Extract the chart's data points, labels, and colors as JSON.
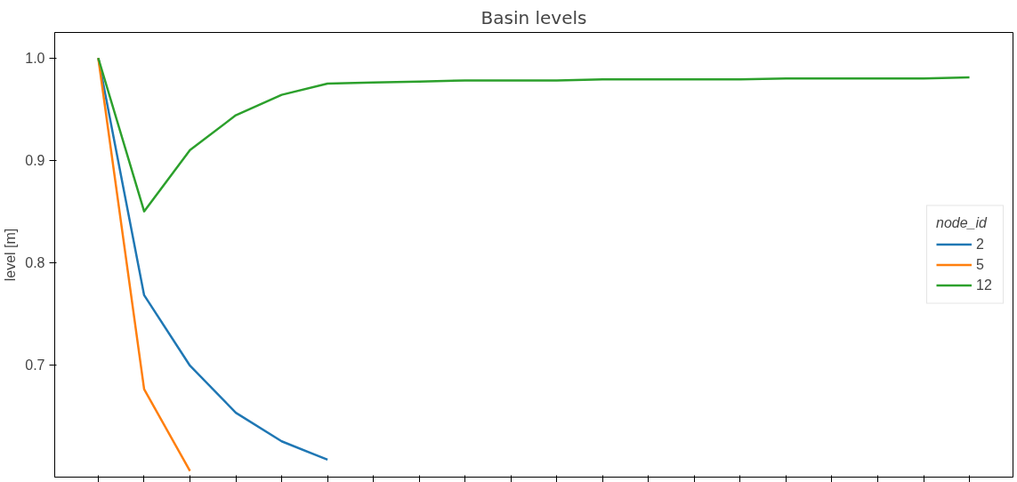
{
  "chart_data": {
    "type": "line",
    "title": "Basin levels",
    "ylabel": "level [m]",
    "legend_title": "node_id",
    "categories": [
      null,
      null,
      null,
      null,
      null,
      null,
      null,
      null,
      null,
      null,
      null,
      null,
      null,
      null,
      null,
      null,
      null,
      null,
      null,
      null
    ],
    "series": [
      {
        "name": "2",
        "color": "#1f77b4",
        "values": [
          1.0,
          0.768,
          0.699,
          0.653,
          0.625,
          0.607,
          null,
          null,
          null,
          null,
          null,
          null,
          null,
          null,
          null,
          null,
          null,
          null,
          null,
          null
        ]
      },
      {
        "name": "5",
        "color": "#ff7f0e",
        "values": [
          1.0,
          0.676,
          0.596,
          null,
          null,
          null,
          null,
          null,
          null,
          null,
          null,
          null,
          null,
          null,
          null,
          null,
          null,
          null,
          null,
          null
        ]
      },
      {
        "name": "12",
        "color": "#2ca02c",
        "values": [
          1.0,
          0.85,
          0.91,
          0.944,
          0.964,
          0.975,
          0.976,
          0.977,
          0.978,
          0.978,
          0.978,
          0.979,
          0.979,
          0.979,
          0.979,
          0.98,
          0.98,
          0.98,
          0.98,
          0.981
        ]
      }
    ],
    "ylim": [
      0.59,
      1.025
    ],
    "yticks": [
      0.7,
      0.8,
      0.9,
      {
        "value": 1.0,
        "label": "1.0"
      }
    ],
    "tick_labels": "y",
    "grid": false,
    "legend": "right",
    "marker": "none",
    "line_style": "solid"
  }
}
